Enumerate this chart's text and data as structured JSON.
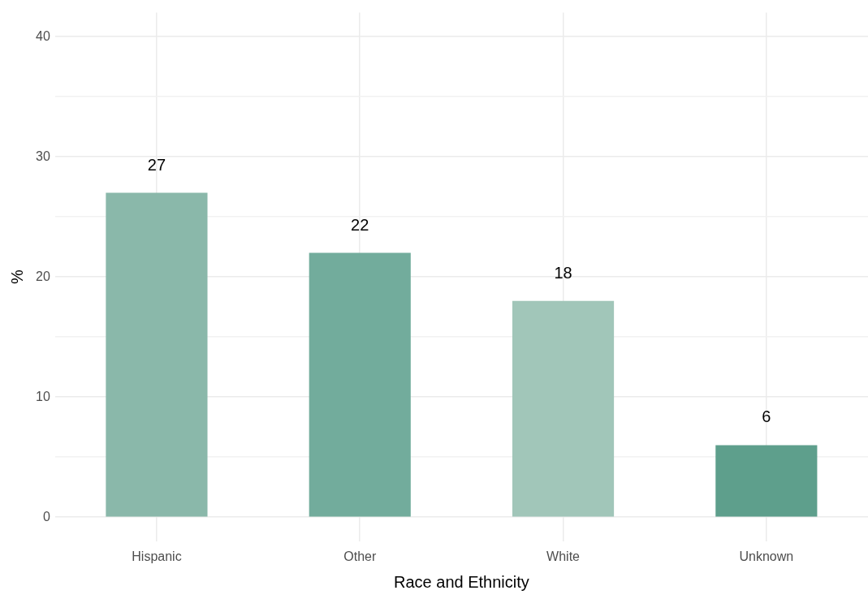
{
  "chart_data": {
    "type": "bar",
    "xlabel": "Race and Ethnicity",
    "ylabel": "%",
    "categories": [
      "Hispanic",
      "Other",
      "White",
      "Unknown"
    ],
    "values": [
      27,
      22,
      18,
      6
    ],
    "colors": [
      "#8ab8aa",
      "#72ac9c",
      "#a1c6b9",
      "#5e9f8c"
    ],
    "ylim": [
      -2,
      42
    ],
    "yticks": [
      0,
      {
        "value": 5,
        "label": null
      },
      10,
      {
        "value": 15,
        "label": null
      },
      20,
      {
        "value": 25,
        "label": null
      },
      30,
      {
        "value": 35,
        "label": null
      },
      40
    ],
    "grid": true,
    "data_labels": true,
    "legend": false
  }
}
